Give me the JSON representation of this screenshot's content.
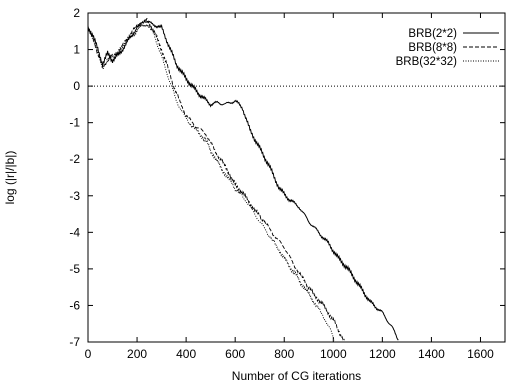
{
  "chart_data": {
    "type": "line",
    "title": "",
    "xlabel": "Number of CG iterations",
    "ylabel": "log (|r|/|b|)",
    "xlim": [
      0,
      1700
    ],
    "ylim": [
      -7,
      2
    ],
    "xticks": [
      0,
      200,
      400,
      600,
      800,
      1000,
      1200,
      1400,
      1600
    ],
    "yticks": [
      -7,
      -6,
      -5,
      -4,
      -3,
      -2,
      -1,
      0,
      1,
      2
    ],
    "legend_position": "top-right",
    "grid": false,
    "reference_line": {
      "y": 0,
      "style": "dotted"
    },
    "series": [
      {
        "name": "BRB(2*2)",
        "style": "solid",
        "points": [
          [
            0,
            1.6
          ],
          [
            20,
            1.4
          ],
          [
            40,
            1.0
          ],
          [
            60,
            0.6
          ],
          [
            80,
            0.9
          ],
          [
            100,
            0.7
          ],
          [
            130,
            0.9
          ],
          [
            160,
            1.2
          ],
          [
            200,
            1.6
          ],
          [
            230,
            1.8
          ],
          [
            260,
            1.7
          ],
          [
            300,
            1.6
          ],
          [
            330,
            1.1
          ],
          [
            360,
            0.6
          ],
          [
            400,
            0.2
          ],
          [
            450,
            -0.2
          ],
          [
            500,
            -0.5
          ],
          [
            530,
            -0.45
          ],
          [
            560,
            -0.5
          ],
          [
            600,
            -0.4
          ],
          [
            630,
            -0.6
          ],
          [
            660,
            -1.2
          ],
          [
            700,
            -1.7
          ],
          [
            740,
            -2.2
          ],
          [
            780,
            -2.8
          ],
          [
            820,
            -3.1
          ],
          [
            860,
            -3.3
          ],
          [
            900,
            -3.7
          ],
          [
            940,
            -4.0
          ],
          [
            980,
            -4.3
          ],
          [
            1020,
            -4.7
          ],
          [
            1060,
            -5.0
          ],
          [
            1100,
            -5.4
          ],
          [
            1150,
            -5.9
          ],
          [
            1200,
            -6.2
          ],
          [
            1240,
            -6.6
          ],
          [
            1265,
            -6.95
          ]
        ]
      },
      {
        "name": "BRB(8*8)",
        "style": "dashed",
        "points": [
          [
            0,
            1.6
          ],
          [
            20,
            1.3
          ],
          [
            40,
            0.9
          ],
          [
            60,
            0.5
          ],
          [
            90,
            0.8
          ],
          [
            120,
            0.9
          ],
          [
            150,
            1.2
          ],
          [
            180,
            1.5
          ],
          [
            210,
            1.7
          ],
          [
            240,
            1.8
          ],
          [
            270,
            1.5
          ],
          [
            300,
            1.0
          ],
          [
            330,
            0.4
          ],
          [
            360,
            -0.2
          ],
          [
            400,
            -0.8
          ],
          [
            440,
            -1.1
          ],
          [
            480,
            -1.3
          ],
          [
            520,
            -1.8
          ],
          [
            560,
            -2.2
          ],
          [
            600,
            -2.7
          ],
          [
            640,
            -3.0
          ],
          [
            680,
            -3.4
          ],
          [
            720,
            -3.7
          ],
          [
            760,
            -4.1
          ],
          [
            800,
            -4.4
          ],
          [
            840,
            -4.9
          ],
          [
            880,
            -5.3
          ],
          [
            920,
            -5.7
          ],
          [
            960,
            -6.0
          ],
          [
            1000,
            -6.4
          ],
          [
            1030,
            -6.8
          ],
          [
            1045,
            -6.95
          ]
        ]
      },
      {
        "name": "BRB(32*32)",
        "style": "dotted",
        "points": [
          [
            0,
            1.6
          ],
          [
            20,
            1.3
          ],
          [
            40,
            0.9
          ],
          [
            60,
            0.5
          ],
          [
            90,
            0.8
          ],
          [
            120,
            0.9
          ],
          [
            150,
            1.2
          ],
          [
            180,
            1.4
          ],
          [
            210,
            1.6
          ],
          [
            240,
            1.7
          ],
          [
            270,
            1.4
          ],
          [
            300,
            0.8
          ],
          [
            330,
            0.2
          ],
          [
            360,
            -0.4
          ],
          [
            400,
            -0.9
          ],
          [
            440,
            -1.2
          ],
          [
            480,
            -1.5
          ],
          [
            520,
            -2.0
          ],
          [
            560,
            -2.4
          ],
          [
            600,
            -2.8
          ],
          [
            640,
            -3.1
          ],
          [
            680,
            -3.5
          ],
          [
            720,
            -3.9
          ],
          [
            760,
            -4.3
          ],
          [
            800,
            -4.7
          ],
          [
            840,
            -5.1
          ],
          [
            880,
            -5.5
          ],
          [
            920,
            -5.9
          ],
          [
            960,
            -6.3
          ],
          [
            990,
            -6.7
          ],
          [
            1005,
            -6.95
          ]
        ]
      }
    ]
  }
}
